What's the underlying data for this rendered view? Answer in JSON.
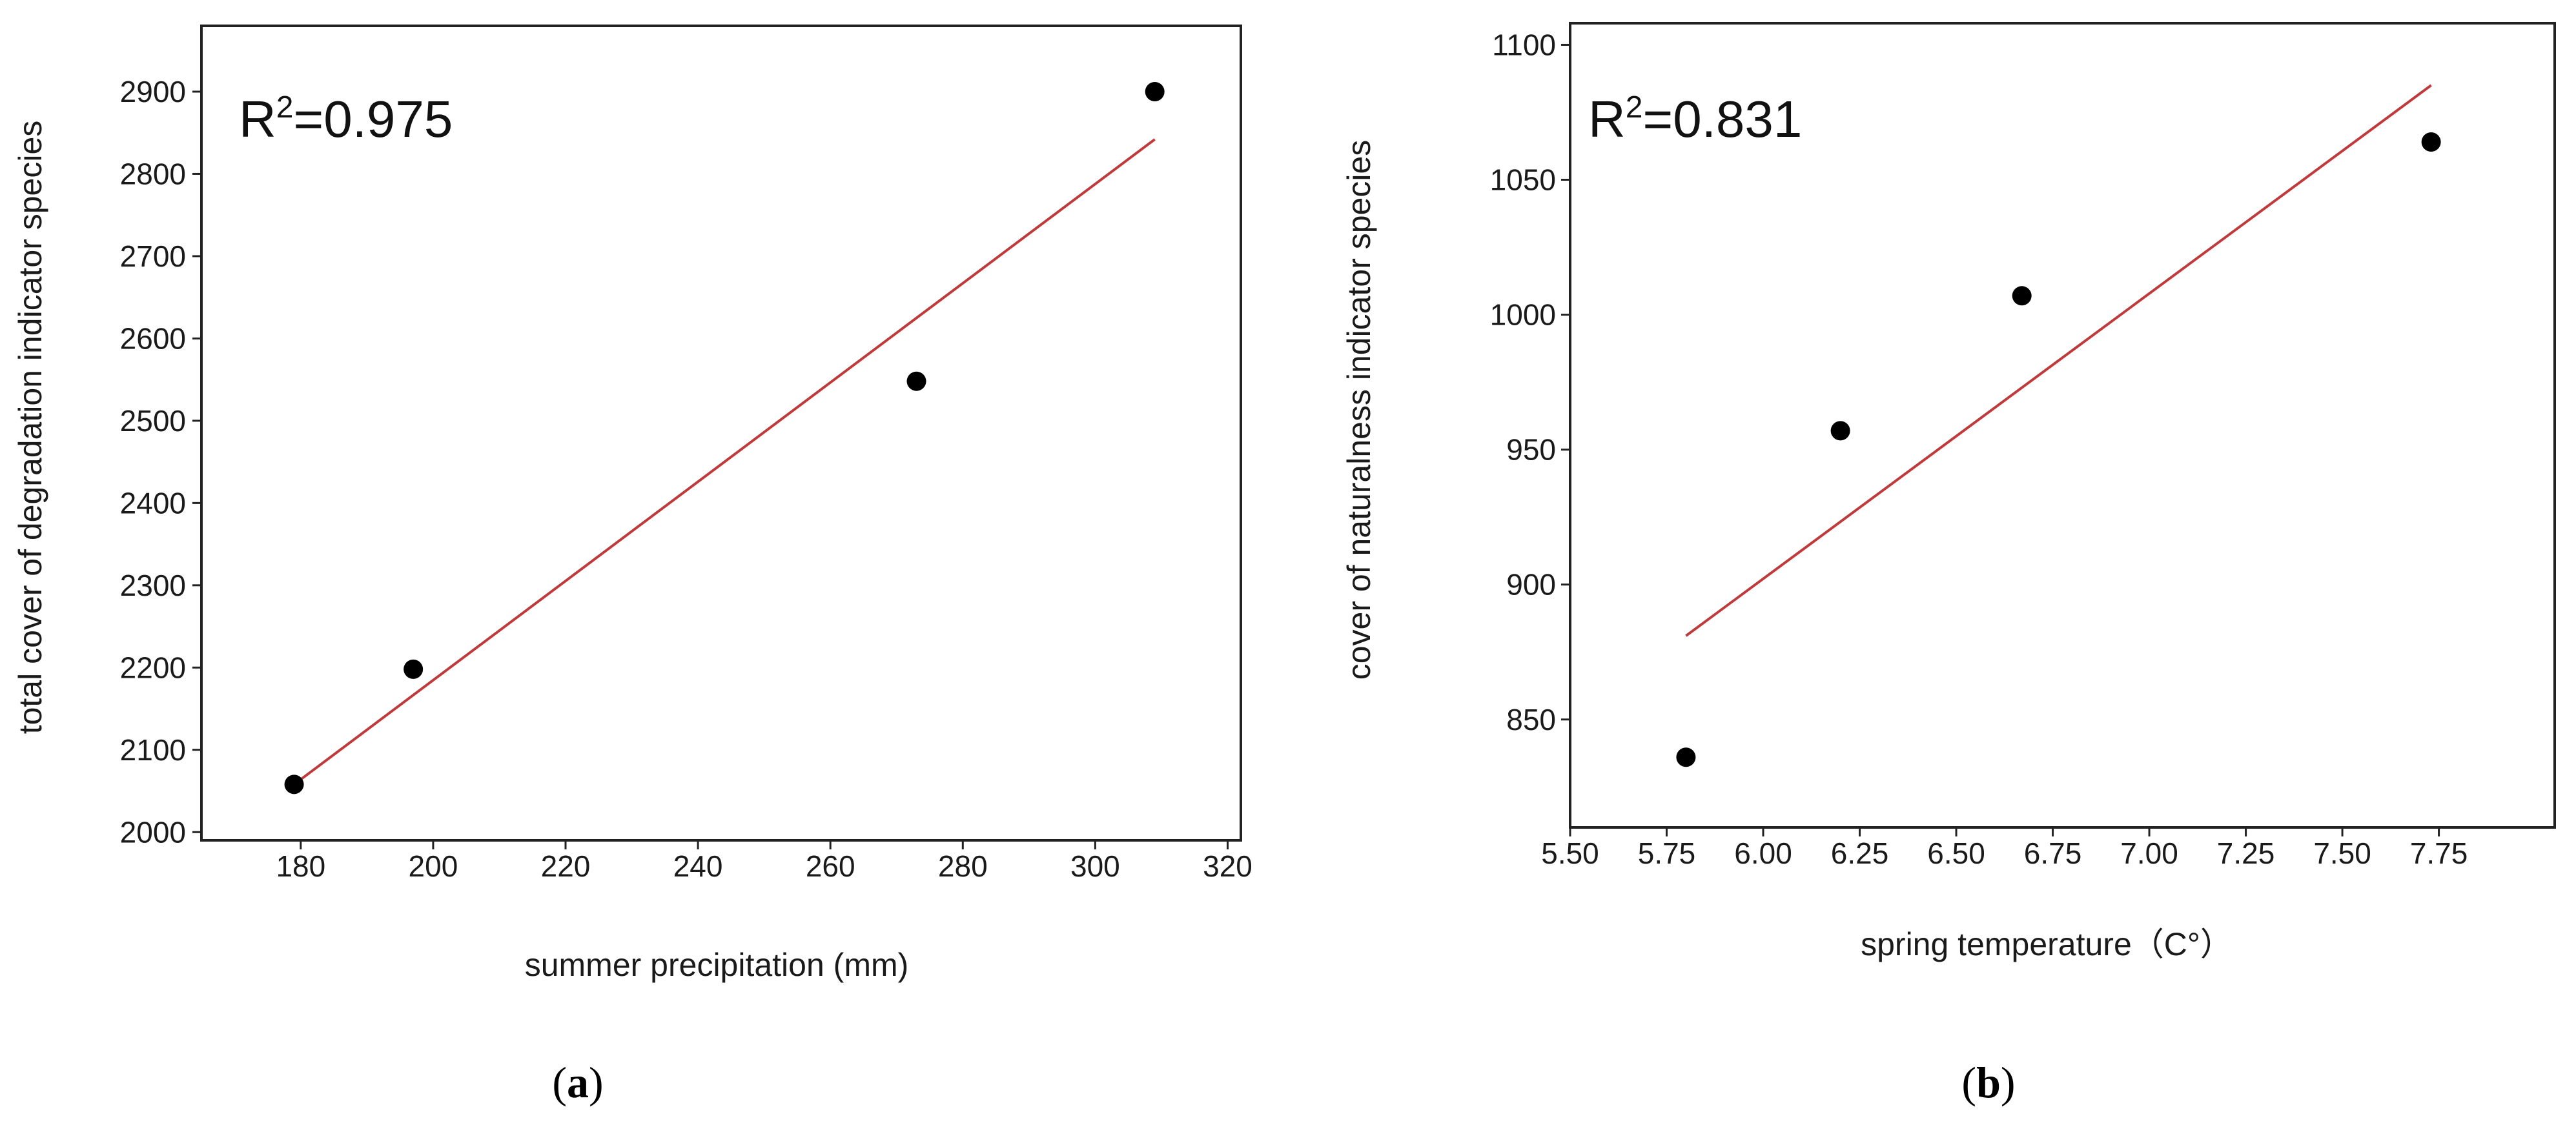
{
  "chart_data": [
    {
      "type": "scatter",
      "panel_label": "a",
      "annotation": {
        "prefix": "R",
        "superscript": "2",
        "suffix": "=0.975"
      },
      "xlabel": "summer precipitation (mm)",
      "ylabel": "total cover of degradation indicator species",
      "xlim": [
        165,
        322
      ],
      "ylim": [
        1990,
        2980
      ],
      "xticks": [
        180,
        200,
        220,
        240,
        260,
        280,
        300,
        320
      ],
      "yticks": [
        2000,
        2100,
        2200,
        2300,
        2400,
        2500,
        2600,
        2700,
        2800,
        2900
      ],
      "points": [
        {
          "x": 179,
          "y": 2058
        },
        {
          "x": 197,
          "y": 2198
        },
        {
          "x": 273,
          "y": 2548
        },
        {
          "x": 309,
          "y": 2900
        }
      ],
      "fit_line": {
        "x": [
          179,
          309
        ],
        "y": [
          2058,
          2842
        ]
      },
      "colors": {
        "points": "#000000",
        "fit": "#c0393b",
        "frame": "#222222"
      }
    },
    {
      "type": "scatter",
      "panel_label": "b",
      "annotation": {
        "prefix": "R",
        "superscript": "2",
        "suffix": "=0.831"
      },
      "xlabel": "spring temperature（C°）",
      "ylabel": "cover of naturalness indicator species",
      "xlim": [
        5.5,
        8.05
      ],
      "ylim": [
        810,
        1108
      ],
      "xticks": [
        5.5,
        5.75,
        6.0,
        6.25,
        6.5,
        6.75,
        7.0,
        7.25,
        7.5,
        7.75
      ],
      "xtick_labels": [
        "5.50",
        "5.75",
        "6.00",
        "6.25",
        "6.50",
        "6.75",
        "7.00",
        "7.25",
        "7.50",
        "7.75"
      ],
      "yticks": [
        850,
        900,
        950,
        1000,
        1050,
        1100
      ],
      "points": [
        {
          "x": 5.8,
          "y": 836
        },
        {
          "x": 6.2,
          "y": 957
        },
        {
          "x": 6.67,
          "y": 1007
        },
        {
          "x": 7.73,
          "y": 1064
        }
      ],
      "fit_line": {
        "x": [
          5.8,
          7.73
        ],
        "y": [
          881,
          1085
        ]
      },
      "colors": {
        "points": "#000000",
        "fit": "#c0393b",
        "frame": "#222222"
      }
    }
  ]
}
